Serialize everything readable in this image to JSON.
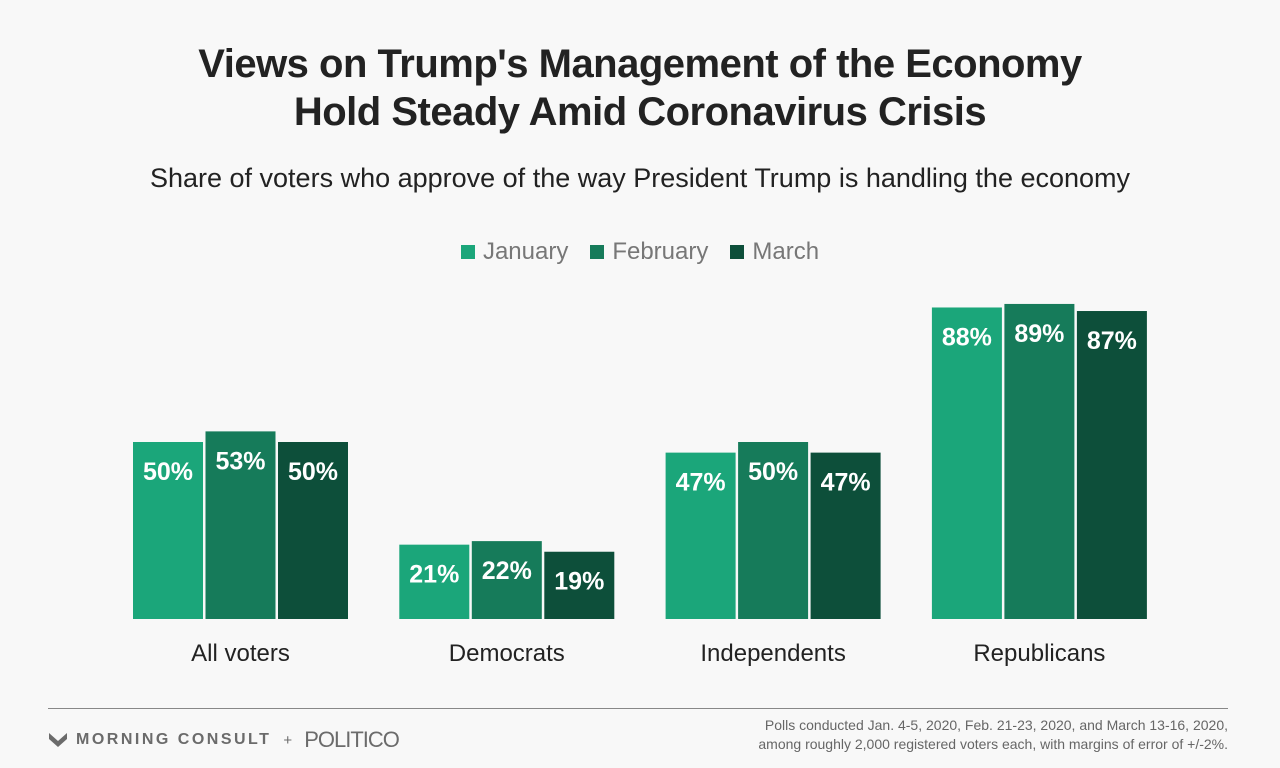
{
  "title_lines": [
    "Views on Trump's Management of the Economy",
    "Hold Steady Amid Coronavirus Crisis"
  ],
  "subtitle": "Share of voters who approve of the way President Trump is handling the economy",
  "footer": {
    "logo_morning_consult": "MORNING CONSULT",
    "plus": "+",
    "logo_politico": "POLITICO",
    "note_lines": [
      "Polls conducted Jan. 4-5, 2020, Feb. 21-23, 2020, and March 13-16, 2020,",
      "among roughly 2,000 registered voters each, with margins of error of +/-2%."
    ]
  },
  "chart_data": {
    "type": "bar",
    "title": "Views on Trump's Management of the Economy Hold Steady Amid Coronavirus Crisis",
    "subtitle": "Share of voters who approve of the way President Trump is handling the economy",
    "categories": [
      "All voters",
      "Democrats",
      "Independents",
      "Republicans"
    ],
    "series": [
      {
        "name": "January",
        "color": "#1ba67a",
        "values": [
          50,
          21,
          47,
          88
        ]
      },
      {
        "name": "February",
        "color": "#167b5a",
        "values": [
          53,
          22,
          50,
          89
        ]
      },
      {
        "name": "March",
        "color": "#0d4f3a",
        "values": [
          50,
          19,
          47,
          87
        ]
      }
    ],
    "value_suffix": "%",
    "ylim": [
      0,
      100
    ],
    "grid": false,
    "legend_position": "top-center",
    "data_labels": true
  }
}
